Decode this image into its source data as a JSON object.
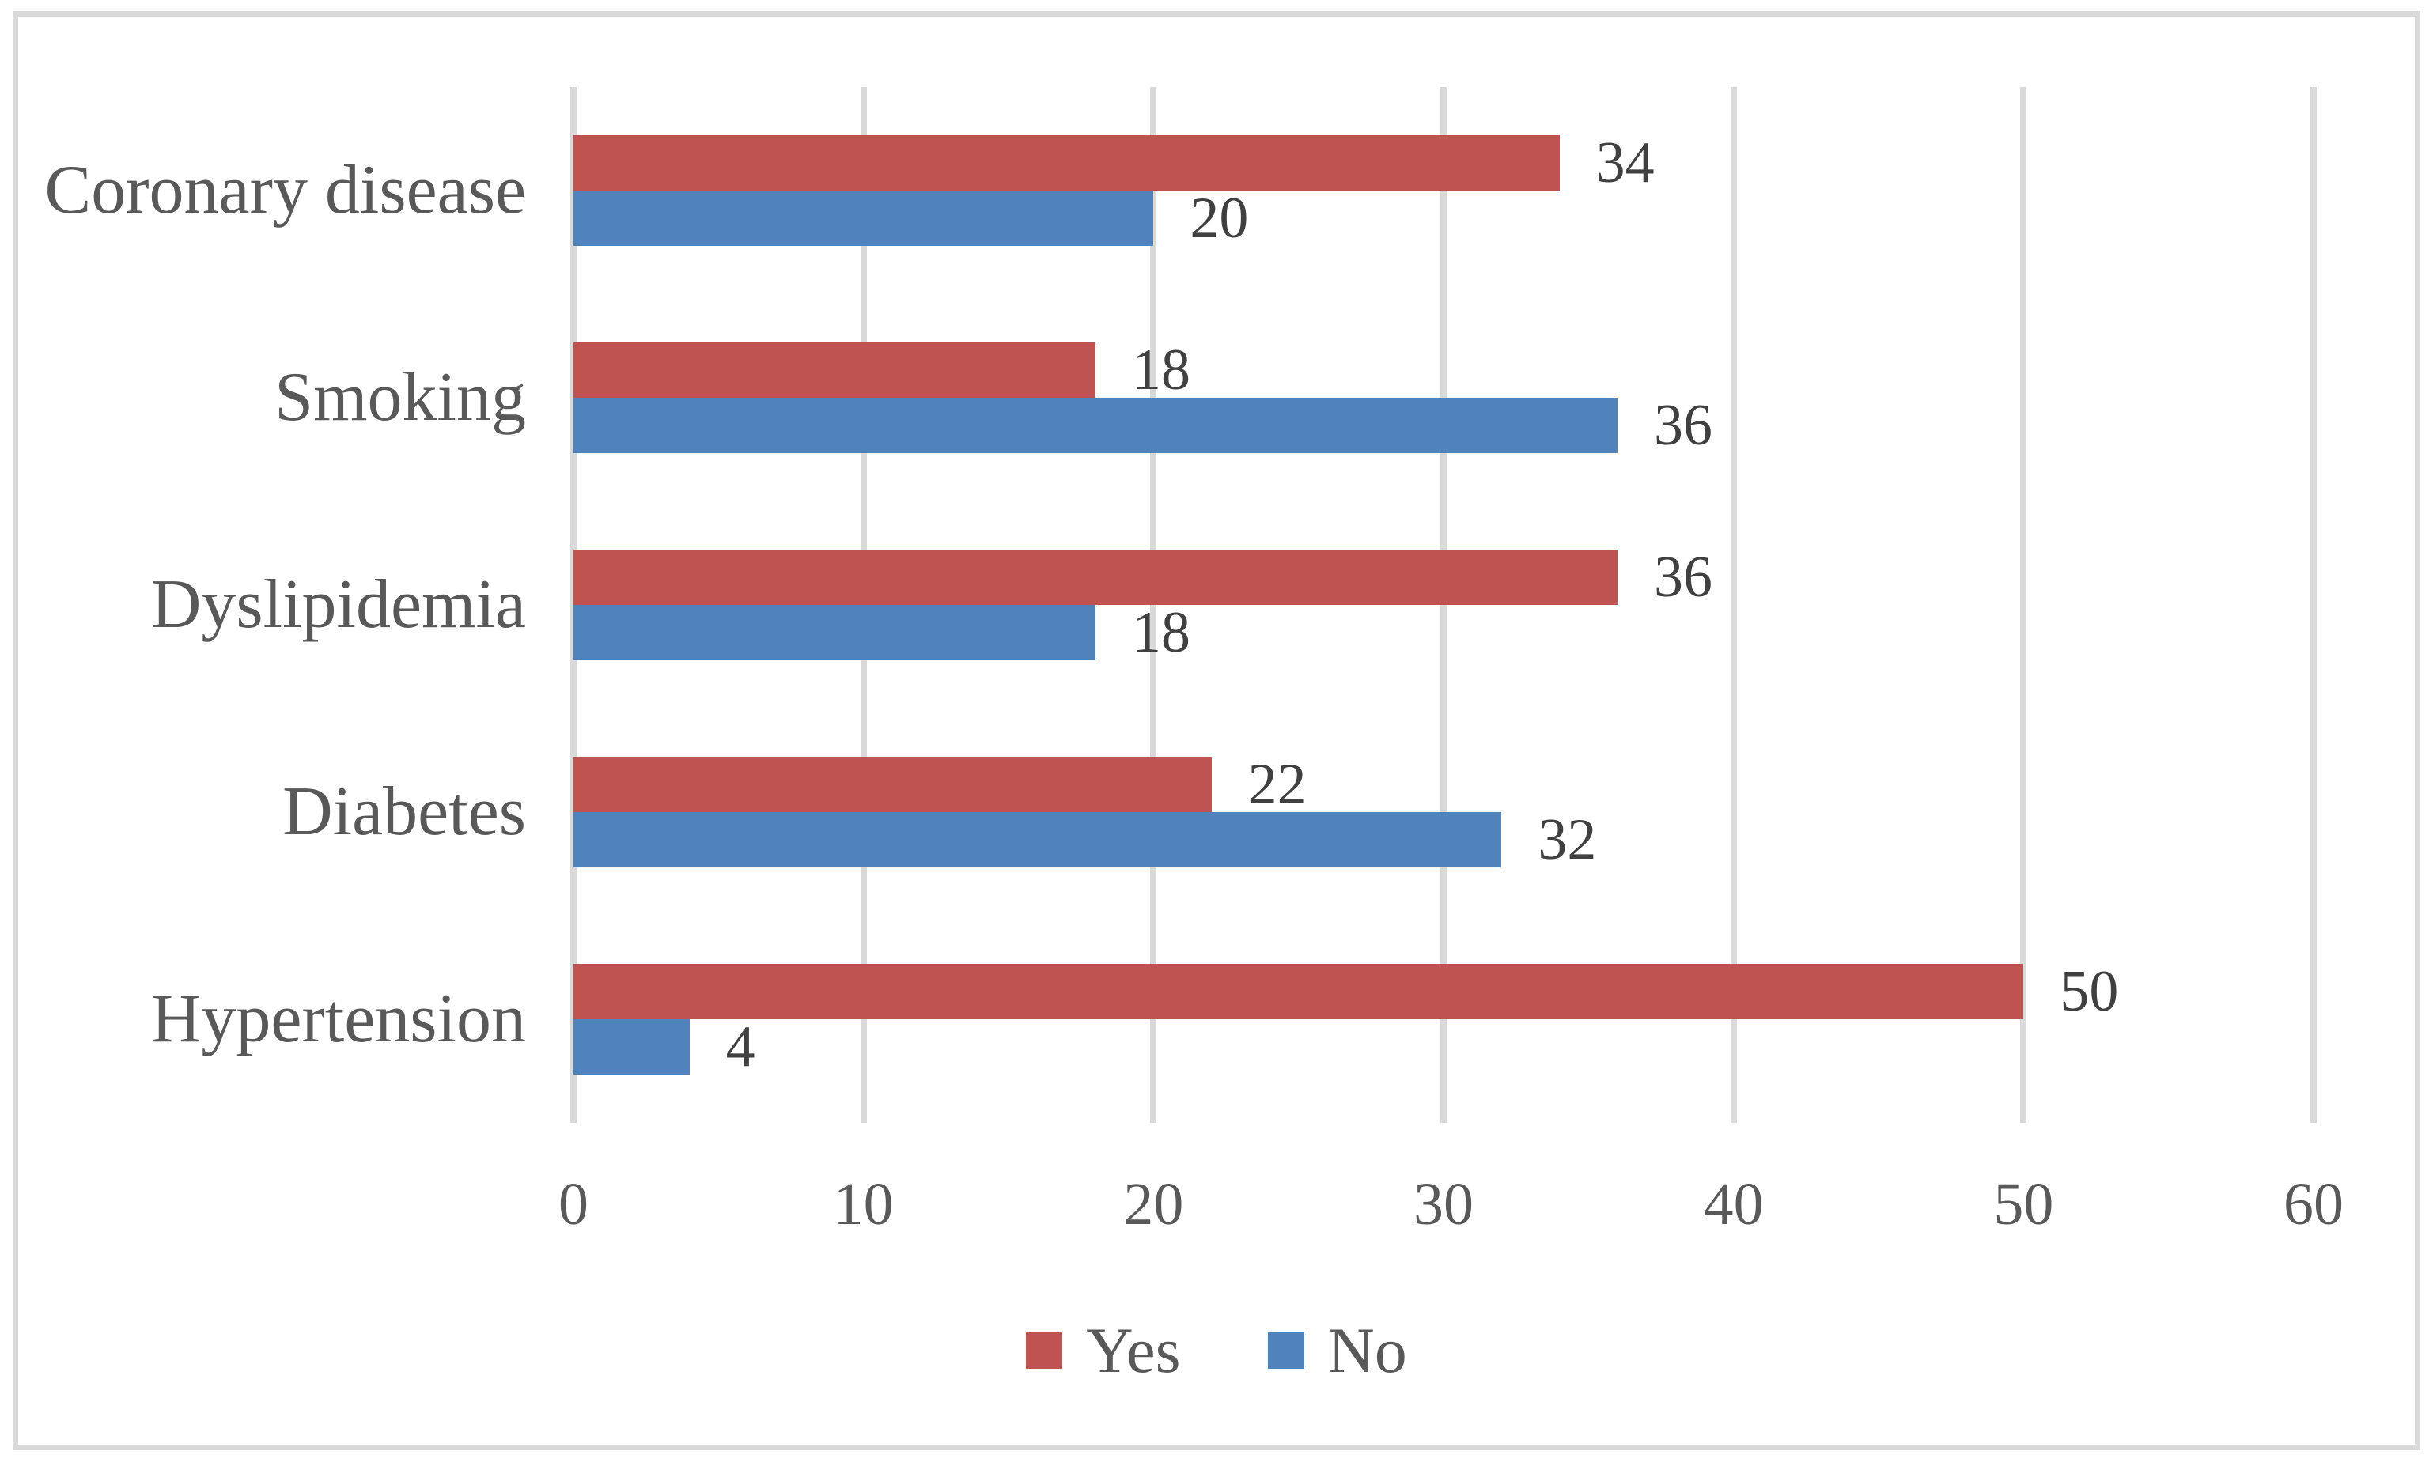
{
  "chart_data": {
    "type": "bar",
    "orientation": "horizontal",
    "title": "",
    "xlabel": "",
    "ylabel": "",
    "categories": [
      "Coronary disease",
      "Smoking",
      "Dyslipidemia",
      "Diabetes",
      "Hypertension"
    ],
    "series": [
      {
        "name": "Yes",
        "color": "#BE5352",
        "values": [
          34,
          18,
          36,
          22,
          50
        ]
      },
      {
        "name": "No",
        "color": "#5082BC",
        "values": [
          20,
          36,
          18,
          32,
          4
        ]
      }
    ],
    "x_axis": {
      "min": 0,
      "max": 60,
      "tick_step": 10,
      "tick_labels": [
        "0",
        "10",
        "20",
        "30",
        "40",
        "50",
        "60"
      ]
    },
    "data_labels_shown": true,
    "grid": "vertical-only",
    "legend_position": "bottom-center",
    "legend": [
      {
        "label": "Yes",
        "color": "#BE5352"
      },
      {
        "label": "No",
        "color": "#5082BC"
      }
    ]
  },
  "colors": {
    "series_yes": "#BE5352",
    "series_no": "#5082BC",
    "gridline": "#D9D9D9",
    "chart_border": "#D9D9D9",
    "category_text": "#595959",
    "tick_text": "#595959",
    "data_label_text": "#404040",
    "background": "#FFFFFF"
  }
}
